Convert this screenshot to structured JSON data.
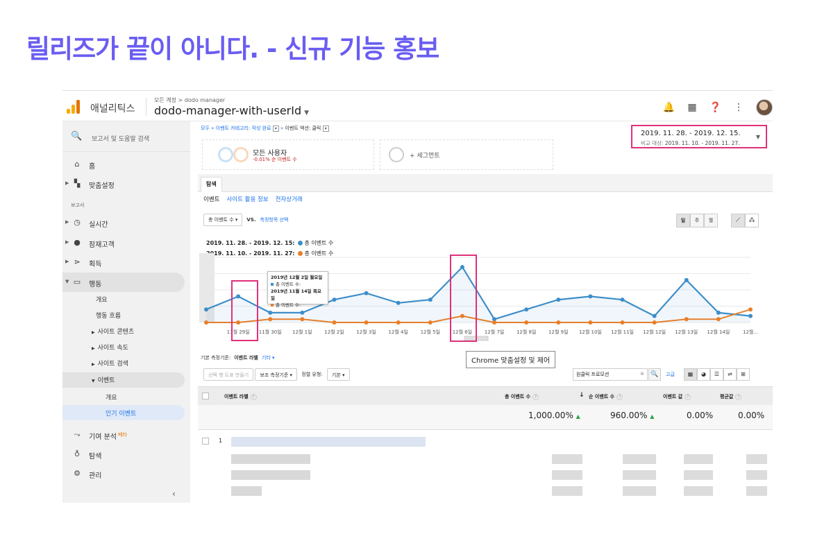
{
  "slide_title": "릴리즈가 끝이 아니다. - 신규 기능 홍보",
  "appbar": {
    "app_name": "애널리틱스",
    "account_crumb": "모든 계정 > dodo manager",
    "property_name": "dodo-manager-with-userId"
  },
  "sidebar": {
    "search_placeholder": "보고서 및 도움말 검색",
    "home": "홈",
    "customization": "맞춤설정",
    "reports_section": "보고서",
    "realtime": "실시간",
    "audience": "잠재고객",
    "acquisition": "획득",
    "behavior": "행동",
    "behavior_sub": {
      "overview": "개요",
      "flow": "행동 흐름",
      "site_content": "사이트 콘텐츠",
      "site_speed": "사이트 속도",
      "site_search": "사이트 검색",
      "events": "이벤트",
      "events_overview": "개요",
      "top_events": "인기 이벤트"
    },
    "attribution": "기여 분석",
    "attribution_badge": "베타",
    "discover": "탐색",
    "admin": "관리"
  },
  "breadcrumbs": {
    "all": "모두",
    "category": "이벤트 카테고리: 작성 완료",
    "action": "이벤트 액션: 클릭"
  },
  "segments": {
    "name": "모든 사용자",
    "sub": "-0.01% 순 이벤트 수",
    "add": "+ 세그먼트"
  },
  "date_range": {
    "main": "2019. 11. 28. - 2019. 12. 15.",
    "compare_label": "비교 대상:",
    "compare": "2019. 11. 10. - 2019. 11. 27."
  },
  "tabs": {
    "explore": "탐색",
    "sub": [
      "이벤트",
      "사이트 활용 정보",
      "전자상거래"
    ]
  },
  "controls": {
    "metric": "총 이벤트 수",
    "vs": "VS.",
    "select_metric": "측정항목 선택",
    "period": [
      "일",
      "주",
      "월"
    ]
  },
  "legend": [
    {
      "range": "2019. 11. 28. - 2019. 12. 15:",
      "name": "총 이벤트 수",
      "color": "#3d8ec9"
    },
    {
      "range": "2019. 11. 10. - 2019. 11. 27:",
      "name": "총 이벤트 수",
      "color": "#e57f2a"
    }
  ],
  "chart_data": {
    "type": "line",
    "categories": [
      "",
      "11월 29일",
      "11월 30일",
      "12월 1일",
      "12월 2일",
      "12월 3일",
      "12월 4일",
      "12월 5일",
      "12월 6일",
      "12월 7일",
      "12월 8일",
      "12월 9일",
      "12월 10일",
      "12월 11일",
      "12월 12일",
      "12월 13일",
      "12월 14일",
      "12월..."
    ],
    "series": [
      {
        "color": "#3d8ec9",
        "values": [
          4,
          8,
          3,
          3,
          7,
          9,
          6,
          7,
          17,
          1,
          4,
          7,
          8,
          7,
          2,
          13,
          3,
          2
        ]
      },
      {
        "color": "#e57f2a",
        "values": [
          0,
          0,
          1,
          1,
          0,
          0,
          0,
          0,
          2,
          0,
          0,
          0,
          0,
          0,
          0,
          1,
          1,
          4
        ]
      }
    ],
    "ylim": [
      0,
      20
    ]
  },
  "tooltip": {
    "date1": "2019년 12월 2일 월요일",
    "metric1": "총 이벤트 수:",
    "date2": "2019년 11월 14일 목요일",
    "metric2": "총 이벤트 수:"
  },
  "chrome_tooltip": "Chrome 맞춤설정 및 제어",
  "primary_dimension": {
    "label": "기본 측정기준:",
    "current": "이벤트 라벨",
    "other": "기타"
  },
  "table_controls": {
    "add_row": "선택 행 도표 만들기",
    "secondary": "보조 측정기준",
    "sort_label": "정렬 유형:",
    "sort_value": "기본",
    "search_value": "원클릭 프로모션",
    "advanced": "고급"
  },
  "table": {
    "headers": [
      "이벤트 라벨",
      "총 이벤트 수",
      "순 이벤트 수",
      "이벤트 값",
      "평균값"
    ],
    "totals": [
      "1,000.00%",
      "960.00%",
      "0.00%",
      "0.00%"
    ],
    "first_row_index": "1"
  }
}
